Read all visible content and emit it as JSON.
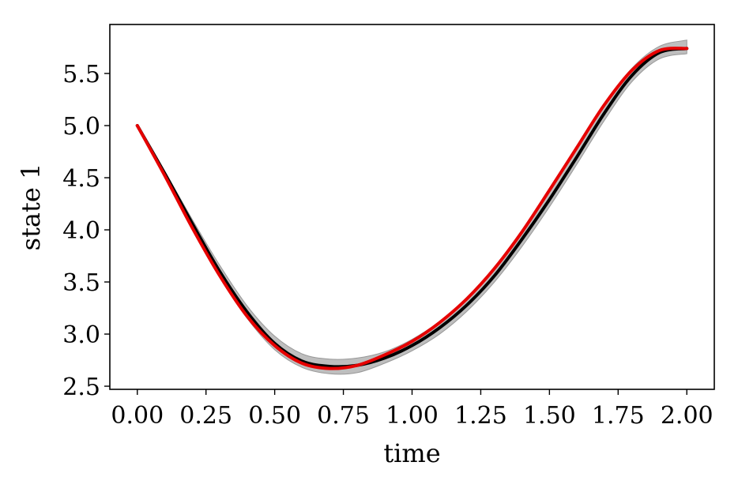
{
  "chart_data": {
    "type": "line",
    "title": "",
    "xlabel": "time",
    "ylabel": "state 1",
    "xlim": [
      -0.1,
      2.1
    ],
    "ylim": [
      2.47,
      5.97
    ],
    "grid": false,
    "legend": "none",
    "xticks": [
      0.0,
      0.25,
      0.5,
      0.75,
      1.0,
      1.25,
      1.5,
      1.75,
      2.0
    ],
    "xtick_labels": [
      "0.00",
      "0.25",
      "0.50",
      "0.75",
      "1.00",
      "1.25",
      "1.50",
      "1.75",
      "2.00"
    ],
    "yticks": [
      2.5,
      3.0,
      3.5,
      4.0,
      4.5,
      5.0,
      5.5
    ],
    "ytick_labels": [
      "2.5",
      "3.0",
      "3.5",
      "4.0",
      "4.5",
      "5.0",
      "5.5"
    ],
    "x": [
      0.0,
      0.1,
      0.2,
      0.3,
      0.4,
      0.5,
      0.6,
      0.7,
      0.8,
      0.9,
      1.0,
      1.1,
      1.2,
      1.3,
      1.4,
      1.5,
      1.6,
      1.7,
      1.8,
      1.9,
      2.0
    ],
    "series": [
      {
        "role": "band",
        "color": "#b3b3b3",
        "lower": [
          5.0,
          4.52,
          4.02,
          3.55,
          3.15,
          2.85,
          2.68,
          2.62,
          2.63,
          2.72,
          2.84,
          3.0,
          3.22,
          3.5,
          3.84,
          4.22,
          4.63,
          5.05,
          5.42,
          5.64,
          5.69
        ],
        "upper": [
          5.0,
          4.56,
          4.1,
          3.66,
          3.27,
          2.98,
          2.81,
          2.76,
          2.77,
          2.83,
          2.95,
          3.12,
          3.34,
          3.63,
          3.98,
          4.37,
          4.78,
          5.2,
          5.55,
          5.76,
          5.82
        ]
      },
      {
        "role": "mean",
        "color": "#000000",
        "values": [
          5.0,
          4.54,
          4.06,
          3.6,
          3.21,
          2.91,
          2.74,
          2.69,
          2.7,
          2.77,
          2.89,
          3.06,
          3.28,
          3.56,
          3.91,
          4.29,
          4.7,
          5.12,
          5.48,
          5.7,
          5.74
        ]
      },
      {
        "role": "reference",
        "color": "#e60000",
        "values": [
          5.0,
          4.52,
          4.02,
          3.56,
          3.17,
          2.89,
          2.72,
          2.67,
          2.7,
          2.8,
          2.93,
          3.11,
          3.34,
          3.63,
          3.98,
          4.38,
          4.79,
          5.2,
          5.53,
          5.72,
          5.74
        ]
      }
    ]
  }
}
